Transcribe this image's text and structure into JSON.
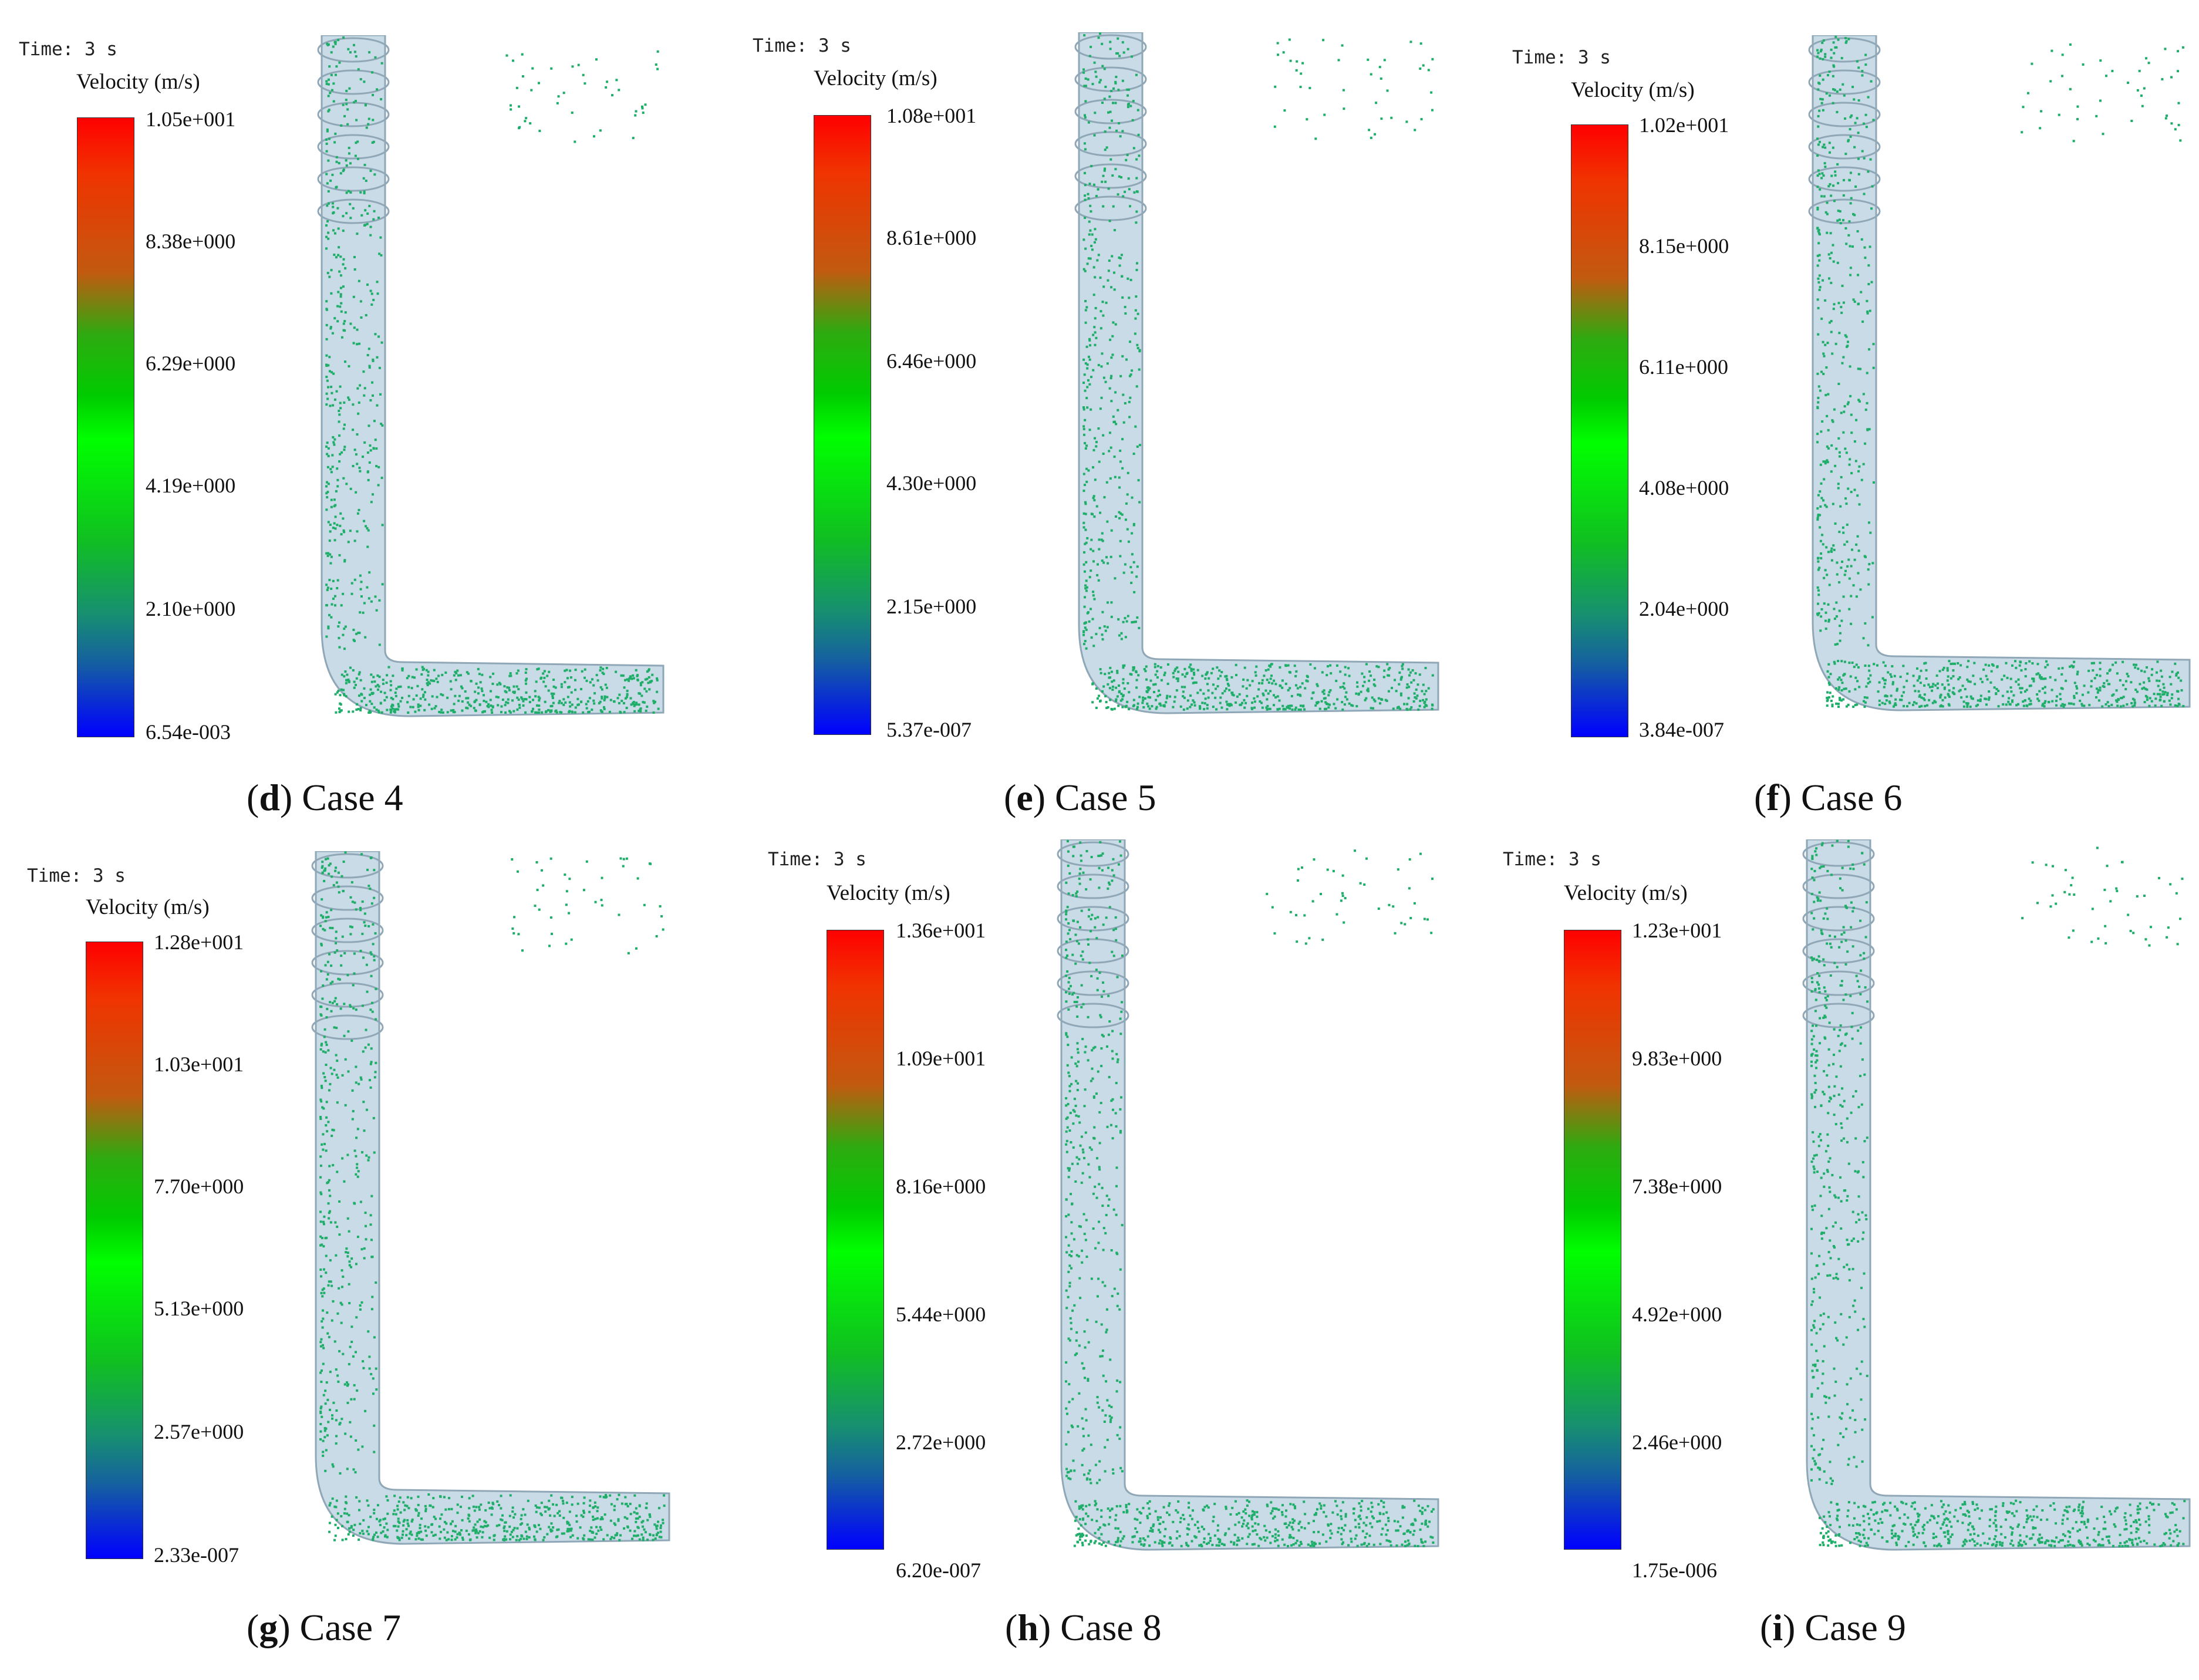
{
  "time_label": "Time: 3 s",
  "velocity_title": "Velocity (m/s)",
  "colors": {
    "cbar_top": "#ff0000",
    "cbar_mid": "#00ff00",
    "cbar_bottom": "#0000ff",
    "pipe": "#c9dbe6",
    "pipe_edge": "#8fa7b6",
    "particle": "#1fae6a"
  },
  "panels": [
    {
      "letter": "d",
      "case": " Case 4",
      "ticks": [
        "1.05e+001",
        "8.38e+000",
        "6.29e+000",
        "4.19e+000",
        "2.10e+000",
        "6.54e-003"
      ]
    },
    {
      "letter": "e",
      "case": " Case 5",
      "ticks": [
        "1.08e+001",
        "8.61e+000",
        "6.46e+000",
        "4.30e+000",
        "2.15e+000",
        "5.37e-007"
      ]
    },
    {
      "letter": "f",
      "case": " Case 6",
      "ticks": [
        "1.02e+001",
        "8.15e+000",
        "6.11e+000",
        "4.08e+000",
        "2.04e+000",
        "3.84e-007"
      ]
    },
    {
      "letter": "g",
      "case": " Case 7",
      "ticks": [
        "1.28e+001",
        "1.03e+001",
        "7.70e+000",
        "5.13e+000",
        "2.57e+000",
        "2.33e-007"
      ]
    },
    {
      "letter": "h",
      "case": " Case 8",
      "ticks": [
        "1.36e+001",
        "1.09e+001",
        "8.16e+000",
        "5.44e+000",
        "2.72e+000",
        "6.20e-007"
      ]
    },
    {
      "letter": "i",
      "case": " Case 9",
      "ticks": [
        "1.23e+001",
        "9.83e+000",
        "7.38e+000",
        "4.92e+000",
        "2.46e+000",
        "1.75e-006"
      ]
    }
  ]
}
